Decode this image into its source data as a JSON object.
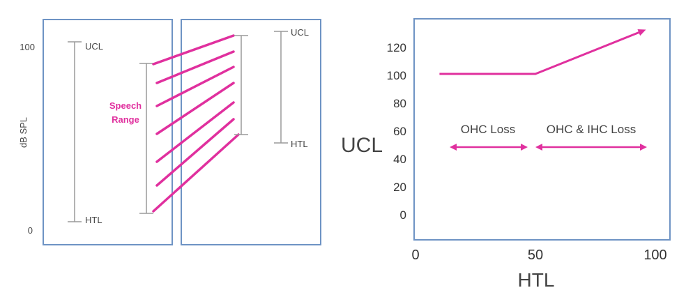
{
  "left_diagram": {
    "y_axis_label": "dB SPL",
    "y_tick_top": "100",
    "y_tick_bottom": "0",
    "normal_ucl": "UCL",
    "normal_htl": "HTL",
    "speech_range_line1": "Speech",
    "speech_range_line2": "Range",
    "impaired_ucl": "UCL",
    "impaired_htl": "HTL"
  },
  "right_chart": {
    "y_title": "UCL",
    "x_title": "HTL",
    "y_ticks": [
      "120",
      "100",
      "80",
      "60",
      "40",
      "20",
      "0"
    ],
    "x_ticks": [
      "0",
      "50",
      "100"
    ],
    "region_left_label": "OHC Loss",
    "region_right_label": "OHC & IHC Loss"
  },
  "chart_data": {
    "type": "line",
    "title": "",
    "xlabel": "HTL",
    "ylabel": "UCL",
    "xlim": [
      0,
      100
    ],
    "ylim": [
      -10,
      140
    ],
    "x_ticks": [
      0,
      50,
      100
    ],
    "y_ticks": [
      0,
      20,
      40,
      60,
      80,
      100,
      120
    ],
    "series": [
      {
        "x": [
          10,
          50,
          95
        ],
        "y": [
          101,
          101,
          132
        ]
      }
    ]
  },
  "colors": {
    "accent": "#e0309e",
    "frame": "#6e93c4",
    "bracket": "#9a9a9a"
  }
}
